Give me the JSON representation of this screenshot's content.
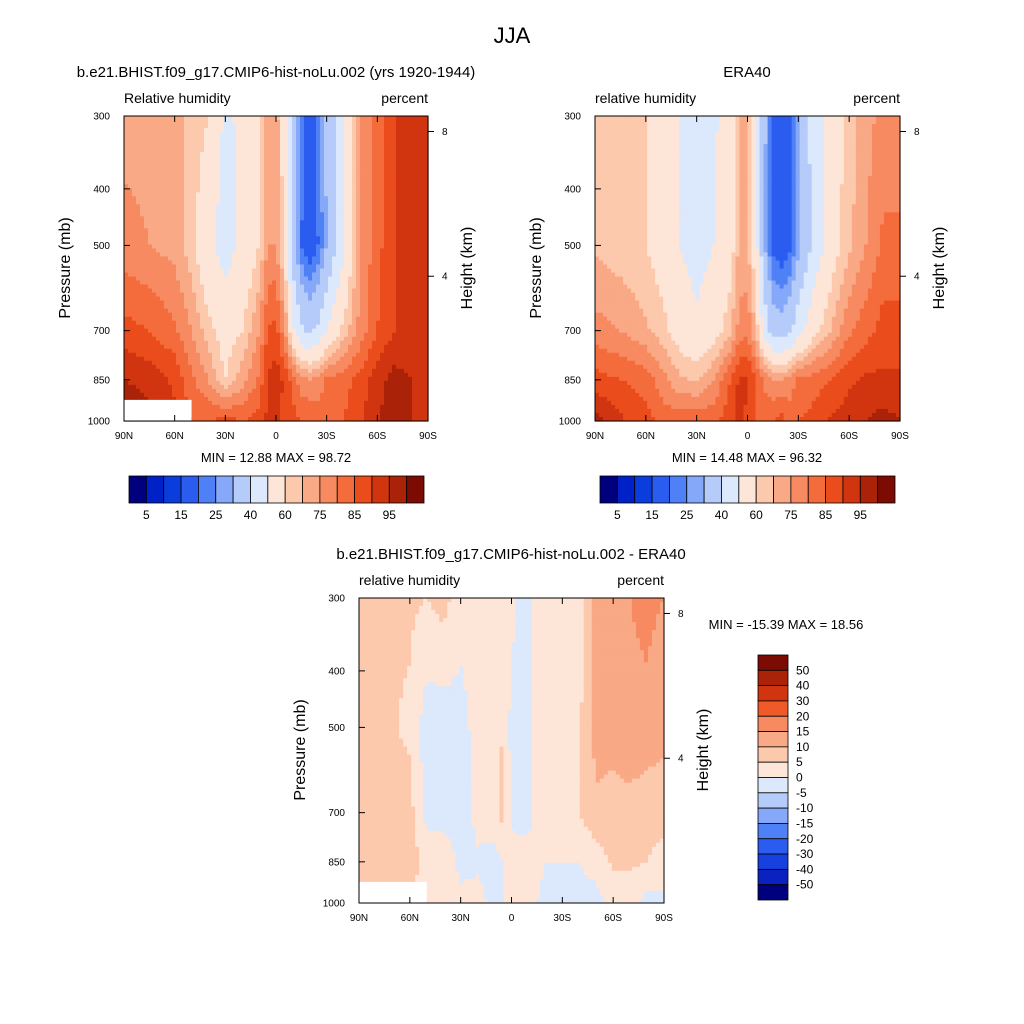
{
  "figure": {
    "title": "JJA"
  },
  "palette": {
    "full": [
      "#00007f",
      "#0020c8",
      "#0b3ddd",
      "#2b5cf0",
      "#4f80f6",
      "#86a8f8",
      "#b5cbf9",
      "#dce8fb",
      "#fde6d8",
      "#fcc9ad",
      "#f9a985",
      "#f78a60",
      "#f56c3c",
      "#ea4c1c",
      "#d13510",
      "#aa2309",
      "#7b0b03"
    ],
    "diff": [
      "#00007f",
      "#0a22c0",
      "#1640e0",
      "#2b5cf0",
      "#4f80f6",
      "#86a8f8",
      "#b5cbf9",
      "#dce8fb",
      "#fde6d8",
      "#fcc9ad",
      "#f9a985",
      "#f78a60",
      "#f05a28",
      "#d13510",
      "#aa2309",
      "#7b0b03"
    ],
    "missing": "#ffffff"
  },
  "chart_data": [
    {
      "id": "model",
      "type": "heatmap",
      "title": "b.e21.BHIST.f09_g17.CMIP6-hist-noLu.002 (yrs 1920-1944)",
      "left_label": "Relative humidity",
      "right_label": "percent",
      "xlabel": "",
      "ylabel": "Pressure (mb)",
      "y2label": "Height (km)",
      "x_ticks": [
        "90N",
        "60N",
        "30N",
        "0",
        "30S",
        "60S",
        "90S"
      ],
      "y_ticks": [
        "300",
        "400",
        "500",
        "700",
        "850",
        "1000"
      ],
      "y_tick_values": [
        300,
        400,
        500,
        700,
        850,
        1000
      ],
      "y2_ticks": [
        "8",
        "4"
      ],
      "y2_tick_values": [
        8,
        4
      ],
      "xlim": [
        90,
        -90
      ],
      "ylim": [
        1000,
        300
      ],
      "log_pressure": true,
      "stats": "MIN =  12.88  MAX =  98.72",
      "min": 12.88,
      "max": 98.72,
      "levels": [
        5,
        10,
        15,
        20,
        25,
        30,
        40,
        50,
        60,
        65,
        70,
        75,
        80,
        85,
        90,
        95
      ],
      "colorbar_labels": [
        "5",
        "15",
        "25",
        "40",
        "60",
        "75",
        "85",
        "95"
      ],
      "colorbar_orientation": "horizontal",
      "blank_region": {
        "lat": [
          50,
          90
        ],
        "p": [
          1000,
          920
        ]
      },
      "field": {
        "bands": [
          {
            "p": 300,
            "lats": [
              90,
              75,
              60,
              50,
              40,
              30,
              20,
              10,
              5,
              0,
              -5,
              -10,
              -15,
              -20,
              -25,
              -30,
              -40,
              -50,
              -60,
              -70,
              -80,
              -90
            ],
            "values": [
              68,
              68,
              66,
              64,
              60,
              48,
              52,
              60,
              70,
              68,
              55,
              33,
              22,
              18,
              22,
              32,
              48,
              70,
              78,
              85,
              90,
              88
            ]
          },
          {
            "p": 500,
            "lats": [
              90,
              75,
              60,
              50,
              40,
              30,
              20,
              10,
              5,
              0,
              -5,
              -10,
              -15,
              -20,
              -25,
              -30,
              -40,
              -50,
              -60,
              -70,
              -80,
              -90
            ],
            "values": [
              72,
              70,
              68,
              62,
              52,
              46,
              52,
              60,
              70,
              70,
              58,
              35,
              20,
              15,
              20,
              30,
              48,
              70,
              78,
              85,
              90,
              88
            ]
          },
          {
            "p": 700,
            "lats": [
              90,
              75,
              60,
              50,
              40,
              30,
              20,
              10,
              5,
              0,
              -5,
              -10,
              -15,
              -20,
              -25,
              -30,
              -40,
              -50,
              -60,
              -70,
              -80,
              -90
            ],
            "values": [
              82,
              80,
              76,
              70,
              62,
              56,
              60,
              70,
              80,
              82,
              72,
              52,
              42,
              38,
              42,
              50,
              62,
              72,
              80,
              85,
              88,
              88
            ]
          },
          {
            "p": 850,
            "lats": [
              90,
              75,
              60,
              50,
              40,
              30,
              20,
              10,
              5,
              0,
              -5,
              -10,
              -15,
              -20,
              -25,
              -30,
              -40,
              -50,
              -60,
              -70,
              -80,
              -90
            ],
            "values": [
              90,
              88,
              84,
              76,
              70,
              60,
              68,
              76,
              86,
              88,
              84,
              78,
              72,
              70,
              72,
              76,
              78,
              82,
              88,
              92,
              90,
              88
            ]
          },
          {
            "p": 1000,
            "lats": [
              90,
              75,
              60,
              50,
              40,
              30,
              20,
              10,
              5,
              0,
              -5,
              -10,
              -15,
              -20,
              -25,
              -30,
              -40,
              -50,
              -60,
              -70,
              -80,
              -90
            ],
            "values": [
              97,
              92,
              86,
              80,
              80,
              82,
              80,
              82,
              86,
              86,
              84,
              82,
              80,
              80,
              78,
              78,
              80,
              84,
              90,
              92,
              90,
              88
            ]
          }
        ]
      }
    },
    {
      "id": "obs",
      "type": "heatmap",
      "title": "ERA40",
      "left_label": "relative humidity",
      "right_label": "percent",
      "xlabel": "",
      "ylabel": "Pressure (mb)",
      "y2label": "Height (km)",
      "x_ticks": [
        "90N",
        "60N",
        "30N",
        "0",
        "30S",
        "60S",
        "90S"
      ],
      "y_ticks": [
        "300",
        "400",
        "500",
        "700",
        "850",
        "1000"
      ],
      "y_tick_values": [
        300,
        400,
        500,
        700,
        850,
        1000
      ],
      "y2_ticks": [
        "8",
        "4"
      ],
      "y2_tick_values": [
        8,
        4
      ],
      "xlim": [
        90,
        -90
      ],
      "ylim": [
        1000,
        300
      ],
      "log_pressure": true,
      "stats": "MIN =  14.48  MAX =  96.32",
      "min": 14.48,
      "max": 96.32,
      "levels": [
        5,
        10,
        15,
        20,
        25,
        30,
        40,
        50,
        60,
        65,
        70,
        75,
        80,
        85,
        90,
        95
      ],
      "colorbar_labels": [
        "5",
        "15",
        "25",
        "40",
        "60",
        "75",
        "85",
        "95"
      ],
      "colorbar_orientation": "horizontal",
      "field": {
        "bands": [
          {
            "p": 300,
            "lats": [
              90,
              75,
              60,
              50,
              40,
              30,
              20,
              10,
              5,
              0,
              -5,
              -10,
              -15,
              -20,
              -25,
              -30,
              -40,
              -50,
              -60,
              -70,
              -80,
              -90
            ],
            "values": [
              62,
              62,
              60,
              56,
              50,
              46,
              48,
              56,
              66,
              66,
              54,
              32,
              20,
              16,
              20,
              30,
              46,
              56,
              62,
              68,
              72,
              72
            ]
          },
          {
            "p": 500,
            "lats": [
              90,
              75,
              60,
              50,
              40,
              30,
              20,
              10,
              5,
              0,
              -5,
              -10,
              -15,
              -20,
              -25,
              -30,
              -40,
              -50,
              -60,
              -70,
              -80,
              -90
            ],
            "values": [
              64,
              62,
              60,
              56,
              50,
              46,
              50,
              56,
              66,
              66,
              54,
              30,
              18,
              15,
              18,
              28,
              44,
              56,
              64,
              70,
              76,
              76
            ]
          },
          {
            "p": 700,
            "lats": [
              90,
              75,
              60,
              50,
              40,
              30,
              20,
              10,
              5,
              0,
              -5,
              -10,
              -15,
              -20,
              -25,
              -30,
              -40,
              -50,
              -60,
              -70,
              -80,
              -90
            ],
            "values": [
              72,
              70,
              66,
              62,
              56,
              52,
              56,
              64,
              72,
              74,
              64,
              46,
              36,
              34,
              38,
              46,
              58,
              66,
              74,
              78,
              82,
              82
            ]
          },
          {
            "p": 850,
            "lats": [
              90,
              75,
              60,
              50,
              40,
              30,
              20,
              10,
              5,
              0,
              -5,
              -10,
              -15,
              -20,
              -25,
              -30,
              -40,
              -50,
              -60,
              -70,
              -80,
              -90
            ],
            "values": [
              82,
              80,
              78,
              72,
              66,
              64,
              70,
              80,
              86,
              86,
              80,
              74,
              70,
              70,
              72,
              76,
              78,
              80,
              84,
              86,
              86,
              86
            ]
          },
          {
            "p": 1000,
            "lats": [
              90,
              75,
              60,
              50,
              40,
              30,
              20,
              10,
              5,
              0,
              -5,
              -10,
              -15,
              -20,
              -25,
              -30,
              -40,
              -50,
              -60,
              -70,
              -80,
              -90
            ],
            "values": [
              92,
              86,
              82,
              78,
              78,
              80,
              78,
              84,
              86,
              84,
              80,
              78,
              80,
              82,
              78,
              80,
              82,
              86,
              88,
              90,
              92,
              90
            ]
          }
        ]
      }
    },
    {
      "id": "diff",
      "type": "heatmap",
      "title": "b.e21.BHIST.f09_g17.CMIP6-hist-noLu.002 - ERA40",
      "left_label": "relative humidity",
      "right_label": "percent",
      "xlabel": "",
      "ylabel": "Pressure (mb)",
      "y2label": "Height (km)",
      "x_ticks": [
        "90N",
        "60N",
        "30N",
        "0",
        "30S",
        "60S",
        "90S"
      ],
      "y_ticks": [
        "300",
        "400",
        "500",
        "700",
        "850",
        "1000"
      ],
      "y_tick_values": [
        300,
        400,
        500,
        700,
        850,
        1000
      ],
      "y2_ticks": [
        "8",
        "4"
      ],
      "y2_tick_values": [
        8,
        4
      ],
      "xlim": [
        90,
        -90
      ],
      "ylim": [
        1000,
        300
      ],
      "log_pressure": true,
      "stats": "MIN = -15.39  MAX =  18.56",
      "min": -15.39,
      "max": 18.56,
      "levels": [
        -50,
        -40,
        -30,
        -20,
        -15,
        -10,
        -5,
        0,
        5,
        10,
        15,
        20,
        30,
        40,
        50
      ],
      "colorbar_labels": [
        "50",
        "40",
        "30",
        "20",
        "15",
        "10",
        "5",
        "0",
        "-5",
        "-10",
        "-15",
        "-20",
        "-30",
        "-40",
        "-50"
      ],
      "colorbar_orientation": "vertical",
      "blank_region": {
        "lat": [
          50,
          90
        ],
        "p": [
          1000,
          920
        ]
      },
      "field": {
        "bands": [
          {
            "p": 300,
            "lats": [
              90,
              75,
              60,
              50,
              40,
              30,
              20,
              10,
              5,
              0,
              -5,
              -10,
              -15,
              -20,
              -25,
              -30,
              -40,
              -50,
              -60,
              -70,
              -80,
              -90
            ],
            "values": [
              6,
              6,
              6,
              5,
              7,
              2,
              3,
              4,
              3,
              2,
              -1,
              -1,
              2,
              2,
              2,
              2,
              3,
              12,
              14,
              15,
              16,
              15
            ]
          },
          {
            "p": 500,
            "lats": [
              90,
              75,
              60,
              50,
              40,
              30,
              20,
              10,
              5,
              0,
              -5,
              -10,
              -15,
              -20,
              -25,
              -30,
              -40,
              -50,
              -60,
              -70,
              -80,
              -90
            ],
            "values": [
              7,
              6,
              4,
              -3,
              -3,
              -2,
              2,
              3,
              5,
              -2,
              -4,
              -2,
              2,
              0,
              2,
              2,
              4,
              12,
              12,
              14,
              14,
              12
            ]
          },
          {
            "p": 700,
            "lats": [
              90,
              75,
              60,
              50,
              40,
              30,
              20,
              10,
              5,
              0,
              -5,
              -10,
              -15,
              -20,
              -25,
              -30,
              -40,
              -50,
              -60,
              -70,
              -80,
              -90
            ],
            "values": [
              9,
              8,
              7,
              -2,
              -3,
              -4,
              2,
              3,
              7,
              -1,
              -3,
              -3,
              5,
              4,
              3,
              3,
              5,
              9,
              8,
              8,
              6,
              6
            ]
          },
          {
            "p": 850,
            "lats": [
              90,
              75,
              60,
              50,
              40,
              30,
              20,
              10,
              5,
              0,
              -5,
              -10,
              -15,
              -20,
              -25,
              -30,
              -40,
              -50,
              -60,
              -70,
              -80,
              -90
            ],
            "values": [
              8,
              6,
              7,
              4,
              5,
              -2,
              -1,
              -2,
              0,
              2,
              4,
              4,
              2,
              0,
              0,
              0,
              0,
              2,
              6,
              6,
              5,
              4
            ]
          },
          {
            "p": 1000,
            "lats": [
              90,
              75,
              60,
              50,
              40,
              30,
              20,
              10,
              5,
              0,
              -5,
              -10,
              -15,
              -20,
              -25,
              -30,
              -40,
              -50,
              -60,
              -70,
              -80,
              -90
            ],
            "values": [
              5,
              6,
              4,
              2,
              2,
              2,
              2,
              -2,
              0,
              2,
              4,
              4,
              0,
              -2,
              0,
              -2,
              -2,
              -2,
              2,
              2,
              -2,
              -2
            ]
          }
        ]
      }
    }
  ]
}
